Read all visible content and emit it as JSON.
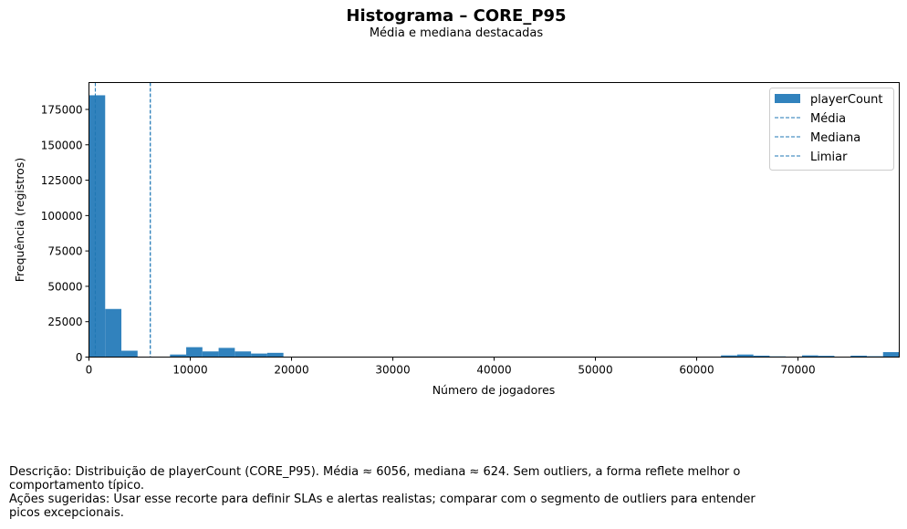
{
  "chart_data": {
    "type": "bar",
    "title": "Histograma – CORE_P95",
    "subtitle": "Média e mediana destacadas",
    "xlabel": "Número de jogadores",
    "ylabel": "Frequência (registros)",
    "xlim": [
      0,
      80000
    ],
    "ylim": [
      0,
      194000
    ],
    "xticks": [
      0,
      10000,
      20000,
      30000,
      40000,
      50000,
      60000,
      70000
    ],
    "yticks": [
      0,
      25000,
      50000,
      75000,
      100000,
      125000,
      150000,
      175000
    ],
    "bin_width": 1600,
    "bins": [
      {
        "start": 0,
        "count": 185000
      },
      {
        "start": 1600,
        "count": 34000
      },
      {
        "start": 3200,
        "count": 4500
      },
      {
        "start": 8000,
        "count": 1800
      },
      {
        "start": 9600,
        "count": 7000
      },
      {
        "start": 11200,
        "count": 4000
      },
      {
        "start": 12800,
        "count": 6500
      },
      {
        "start": 14400,
        "count": 4000
      },
      {
        "start": 16000,
        "count": 2500
      },
      {
        "start": 17600,
        "count": 3000
      },
      {
        "start": 62400,
        "count": 1200
      },
      {
        "start": 64000,
        "count": 1800
      },
      {
        "start": 65600,
        "count": 1000
      },
      {
        "start": 67200,
        "count": 500
      },
      {
        "start": 70400,
        "count": 1200
      },
      {
        "start": 72000,
        "count": 900
      },
      {
        "start": 75200,
        "count": 1000
      },
      {
        "start": 76800,
        "count": 600
      },
      {
        "start": 78400,
        "count": 3500
      }
    ],
    "reference_lines": [
      {
        "name": "Média",
        "value": 6056
      },
      {
        "name": "Mediana",
        "value": 624
      },
      {
        "name": "Limiar",
        "value": 6056
      }
    ],
    "legend": {
      "placement": "top-right",
      "entries": [
        "playerCount",
        "Média",
        "Mediana",
        "Limiar"
      ]
    },
    "colors": {
      "bar": "#3182bd",
      "line": "#1f77b4"
    },
    "grid": false
  },
  "description": {
    "line1": "Descrição: Distribuição de playerCount (CORE_P95). Média ≈ 6056, mediana ≈ 624. Sem outliers, a forma reflete melhor o comportamento típico.",
    "line2": "Ações sugeridas: Usar esse recorte para definir SLAs e alertas realistas; comparar com o segmento de outliers para entender picos excepcionais."
  }
}
